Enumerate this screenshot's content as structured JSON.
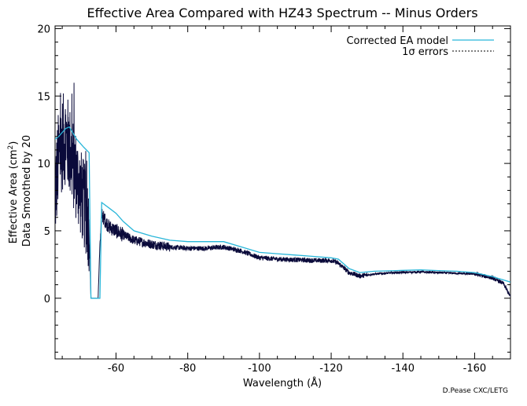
{
  "chart_data": {
    "type": "line",
    "title": "Effective Area Compared with HZ43 Spectrum -- Minus Orders",
    "xlabel": "Wavelength (Å)",
    "ylabel_line1": "Effective Area (cm",
    "ylabel_sup": "2",
    "ylabel_line1_end": ")",
    "ylabel_line2": "Data Smoothed by 20",
    "xlim": [
      -43,
      -170
    ],
    "ylim": [
      -4.5,
      20.2
    ],
    "x_ticks": [
      -60,
      -80,
      -100,
      -120,
      -140,
      -160
    ],
    "x_tick_labels": [
      "-60",
      "-80",
      "-100",
      "-120",
      "-140",
      "-160"
    ],
    "y_ticks": [
      0,
      5,
      10,
      15,
      20
    ],
    "y_tick_labels": [
      "0",
      "5",
      "10",
      "15",
      "20"
    ],
    "grid": false,
    "legend_position": "top-right",
    "series": [
      {
        "name": "Corrected EA model",
        "color": "#29b6d9",
        "style": "solid",
        "x": [
          -43,
          -44,
          -46,
          -47,
          -49,
          -51,
          -52.5,
          -53,
          -55.5,
          -56,
          -58,
          -60,
          -62,
          -65,
          -70,
          -75,
          -80,
          -85,
          -90,
          -95,
          -100,
          -105,
          -110,
          -115,
          -120,
          -122,
          -125,
          -128,
          -132,
          -138,
          -145,
          -150,
          -155,
          -160,
          -165,
          -170
        ],
        "y": [
          11.8,
          12.0,
          12.6,
          12.7,
          11.8,
          11.2,
          10.8,
          0,
          0,
          7.1,
          6.7,
          6.3,
          5.7,
          5.0,
          4.6,
          4.3,
          4.2,
          4.2,
          4.2,
          3.8,
          3.4,
          3.3,
          3.2,
          3.1,
          3.0,
          2.9,
          2.2,
          1.9,
          2.0,
          2.05,
          2.1,
          2.05,
          2.0,
          1.9,
          1.6,
          1.2
        ]
      },
      {
        "name": "1σ errors",
        "color": "#000000",
        "style": "dotted",
        "x": [],
        "y": []
      },
      {
        "name": "",
        "color": "#0a0a3a",
        "style": "solid",
        "x": [
          -43,
          -44,
          -45,
          -46,
          -47,
          -48,
          -49,
          -50,
          -51,
          -52,
          -52.5,
          -53,
          -55,
          -55.5,
          -56,
          -58,
          -60,
          -62,
          -65,
          -70,
          -75,
          -80,
          -85,
          -90,
          -95,
          -100,
          -105,
          -110,
          -115,
          -120,
          -122,
          -125,
          -128,
          -132,
          -138,
          -145,
          -150,
          -155,
          -160,
          -165,
          -168,
          -170
        ],
        "y": [
          7.5,
          10.5,
          11.5,
          12.0,
          11.0,
          10.0,
          9.0,
          8.0,
          7.0,
          6.0,
          5.0,
          0,
          0,
          4.0,
          6.2,
          5.3,
          5.0,
          4.7,
          4.3,
          4.0,
          3.8,
          3.7,
          3.7,
          3.8,
          3.5,
          3.0,
          2.9,
          2.85,
          2.8,
          2.8,
          2.6,
          1.9,
          1.65,
          1.8,
          1.9,
          1.95,
          1.9,
          1.85,
          1.8,
          1.5,
          1.1,
          0.1
        ]
      }
    ],
    "credit": "D.Pease CXC/LETG"
  }
}
